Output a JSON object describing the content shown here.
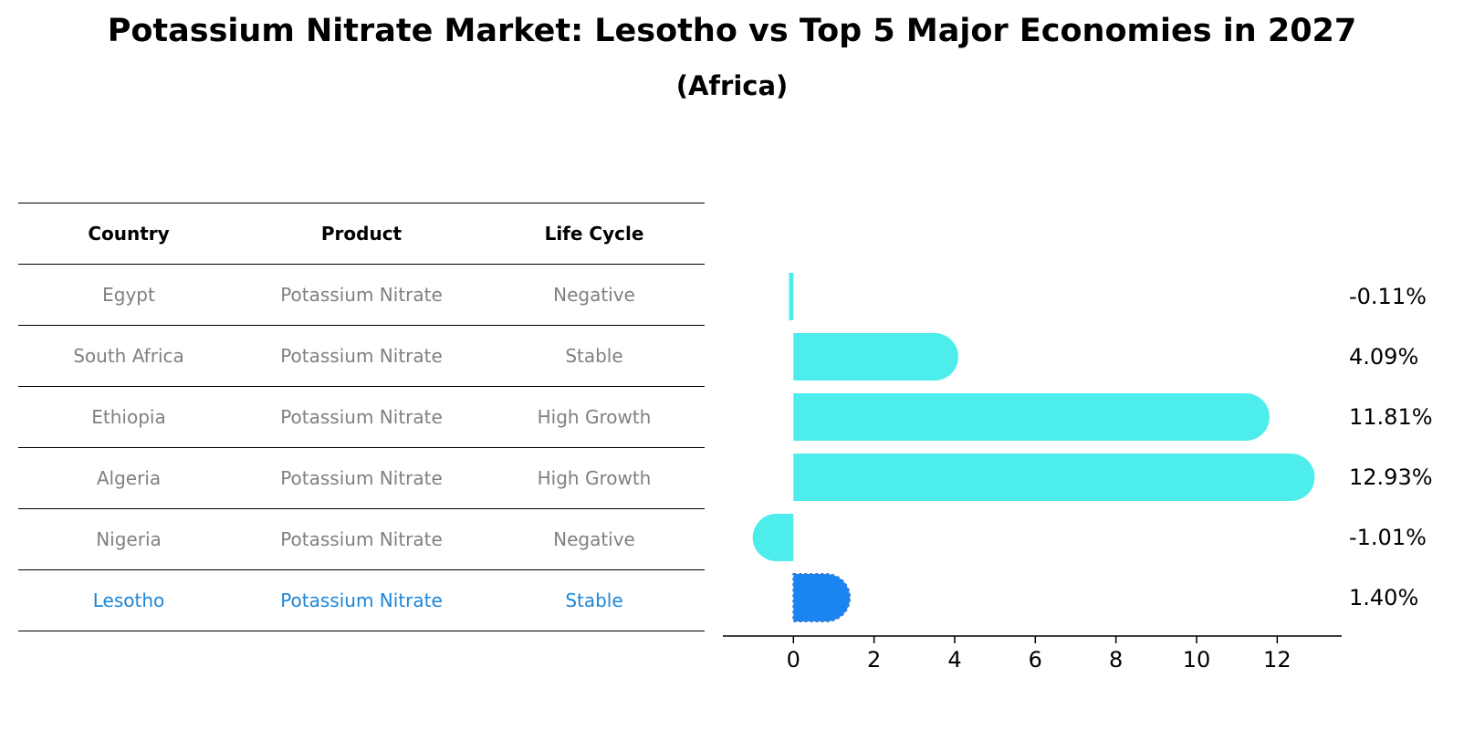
{
  "title": "Potassium Nitrate Market: Lesotho vs Top 5 Major Economies in 2027",
  "subtitle": "(Africa)",
  "table": {
    "headers": [
      "Country",
      "Product",
      "Life Cycle"
    ],
    "rows": [
      [
        "Egypt",
        "Potassium Nitrate",
        "Negative"
      ],
      [
        "South Africa",
        "Potassium Nitrate",
        "Stable"
      ],
      [
        "Ethiopia",
        "Potassium Nitrate",
        "High Growth"
      ],
      [
        "Algeria",
        "Potassium Nitrate",
        "High Growth"
      ],
      [
        "Nigeria",
        "Potassium Nitrate",
        "Negative"
      ],
      [
        "Lesotho",
        "Potassium Nitrate",
        "Stable"
      ]
    ],
    "highlight_row": 5
  },
  "colors": {
    "bar": "#4dedeb",
    "highlight": "#1a85f0",
    "highlight_text": "#1c86d9",
    "muted_text": "#808080"
  },
  "chart_data": {
    "type": "bar",
    "orientation": "horizontal",
    "categories": [
      "Egypt",
      "South Africa",
      "Ethiopia",
      "Algeria",
      "Nigeria",
      "Lesotho"
    ],
    "values": [
      -0.11,
      4.09,
      11.81,
      12.93,
      -1.01,
      1.4
    ],
    "value_labels": [
      "-0.11%",
      "4.09%",
      "11.81%",
      "12.93%",
      "-1.01%",
      "1.40%"
    ],
    "xticks": [
      0,
      2,
      4,
      6,
      8,
      10,
      12
    ],
    "xlim": [
      -1.75,
      13.6
    ],
    "highlight_index": 5,
    "xlabel": "",
    "ylabel": ""
  }
}
